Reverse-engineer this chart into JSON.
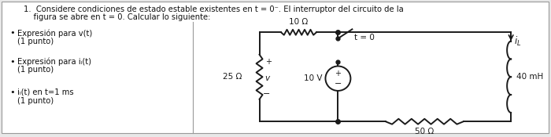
{
  "title_line1": "1.  Considere condiciones de estado estable existentes en t = 0⁻. El interruptor del circuito de la",
  "title_line2": "    figura se abre en t = 0. Calcular lo siguiente:",
  "bullet_items": [
    [
      "Expresión para v(t)",
      "(1 punto)"
    ],
    [
      "Expresión para iₗ(t)",
      "(1 punto)"
    ],
    [
      "iₗ(t) en t=1 ms",
      "(1 punto)"
    ]
  ],
  "bg_color": "#e8e8e8",
  "box_bg": "#f5f5f5",
  "text_color": "#111111",
  "font_size_title": 7.2,
  "font_size_body": 7.2,
  "circuit": {
    "resistor_top": "10 Ω",
    "resistor_left": "25 Ω",
    "resistor_bottom": "50 Ω",
    "inductor": "40 mH",
    "voltage_source": "10 V",
    "switch_label": "t = 0",
    "current_label": "i_L"
  }
}
